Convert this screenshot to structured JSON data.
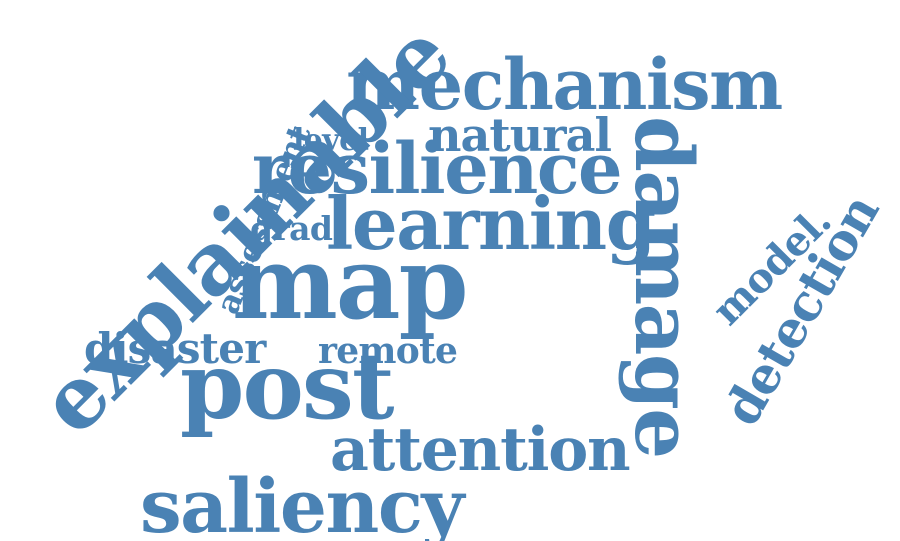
{
  "word_cloud": {
    "color": "#4a82b4",
    "words": [
      {
        "id": "mechanism",
        "text": "mechanism"
      },
      {
        "id": "natural",
        "text": "natural"
      },
      {
        "id": "level",
        "text": "level"
      },
      {
        "id": "resilience",
        "text": "resilience"
      },
      {
        "id": "grad",
        "text": "grad"
      },
      {
        "id": "learning",
        "text": "learning"
      },
      {
        "id": "map",
        "text": "map"
      },
      {
        "id": "disaster",
        "text": "disaster"
      },
      {
        "id": "remote",
        "text": "remote"
      },
      {
        "id": "post",
        "text": "post"
      },
      {
        "id": "attention",
        "text": "attention"
      },
      {
        "id": "saliency",
        "text": "saliency"
      },
      {
        "id": "assessment",
        "text": "assessment"
      },
      {
        "id": "explainable",
        "text": "explainable"
      },
      {
        "id": "damage",
        "text": "damage"
      },
      {
        "id": "model",
        "text": "model."
      },
      {
        "id": "detection",
        "text": "detection"
      }
    ]
  }
}
